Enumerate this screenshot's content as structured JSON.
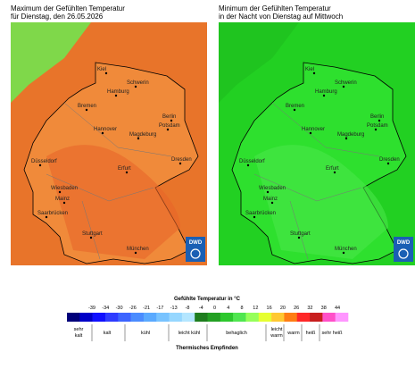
{
  "maps": [
    {
      "title": [
        "Maximum der Gefühlten Temperatur",
        "für Dienstag, den 26.05.2026"
      ]
    },
    {
      "title": [
        "Minimum der Gefühlten Temperatur",
        "in der Nacht von Dienstag auf Mittwoch"
      ]
    }
  ],
  "cities": [
    "Kiel",
    "Schwerin",
    "Hamburg",
    "Bremen",
    "Berlin",
    "Potsdam",
    "Hannover",
    "Magdeburg",
    "Düsseldorf",
    "Erfurt",
    "Dresden",
    "Wiesbaden",
    "Mainz",
    "Saarbrücken",
    "Stuttgart",
    "München"
  ],
  "logo": "DWD",
  "legend": {
    "title": "Gefühlte Temperatur in °C",
    "ticks": [
      -39,
      -34,
      -30,
      -26,
      -21,
      -17,
      -13,
      -8,
      -4,
      0,
      4,
      8,
      12,
      16,
      20,
      26,
      32,
      38,
      44
    ],
    "classes": [
      "sehr kalt",
      "kalt",
      "kühl",
      "leicht kühl",
      "behaglich",
      "leicht warm",
      "warm",
      "heiß",
      "sehr heiß"
    ],
    "caption": "Thermisches Empfinden"
  }
}
